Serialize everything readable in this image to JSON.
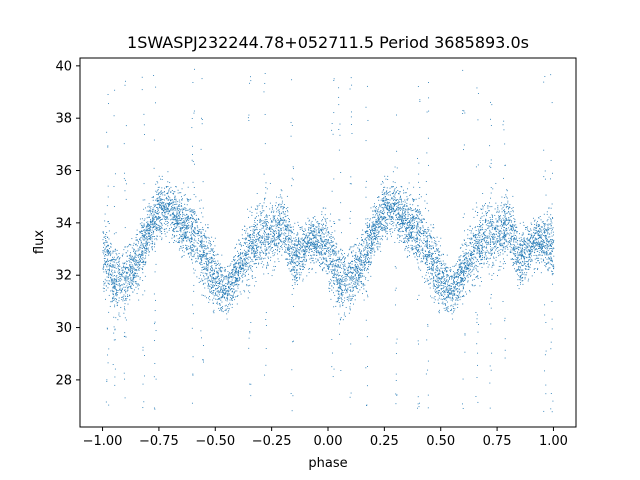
{
  "chart_data": {
    "type": "scatter",
    "title": "1SWASPJ232244.78+052711.5 Period 3685893.0s",
    "xlabel": "phase",
    "ylabel": "flux",
    "xlim": [
      -1.1,
      1.1
    ],
    "ylim": [
      26.2,
      40.3
    ],
    "xticks": [
      -1.0,
      -0.75,
      -0.5,
      -0.25,
      0.0,
      0.25,
      0.5,
      0.75,
      1.0
    ],
    "xtick_labels": [
      "−1.00",
      "−0.75",
      "−0.50",
      "−0.25",
      "0.00",
      "0.25",
      "0.50",
      "0.75",
      "1.00"
    ],
    "yticks": [
      28,
      30,
      32,
      34,
      36,
      38,
      40
    ],
    "ytick_labels": [
      "28",
      "30",
      "32",
      "34",
      "36",
      "38",
      "40"
    ],
    "grid": false,
    "legend": "none",
    "marker_color": "#1f77b4",
    "series": [
      {
        "phase": [
          0.0,
          0.05,
          0.1,
          0.15,
          0.2,
          0.25,
          0.3,
          0.35,
          0.4,
          0.45,
          0.5,
          0.55,
          0.6,
          0.65,
          0.7,
          0.75,
          0.8,
          0.85,
          0.9,
          0.95,
          1.0
        ],
        "flux_mean": [
          33.0,
          31.8,
          31.9,
          32.4,
          33.6,
          34.6,
          34.5,
          34.0,
          33.8,
          32.7,
          31.8,
          31.4,
          32.3,
          33.0,
          33.5,
          33.6,
          34.0,
          32.6,
          33.2,
          33.4,
          33.0
        ],
        "flux_spread": [
          1.0,
          0.9,
          0.8,
          0.8,
          0.7,
          0.7,
          0.7,
          0.7,
          1.0,
          0.9,
          0.8,
          0.6,
          0.7,
          0.9,
          0.9,
          0.9,
          0.8,
          0.8,
          0.7,
          0.7,
          1.0
        ]
      }
    ],
    "outlier_phases": [
      -0.98,
      -0.95,
      -0.9,
      -0.82,
      -0.77,
      -0.6,
      -0.56,
      -0.35,
      -0.28,
      -0.16,
      0.02,
      0.05,
      0.1,
      0.17,
      0.3,
      0.4,
      0.44,
      0.6,
      0.66,
      0.72,
      0.78,
      0.96,
      0.99
    ]
  }
}
